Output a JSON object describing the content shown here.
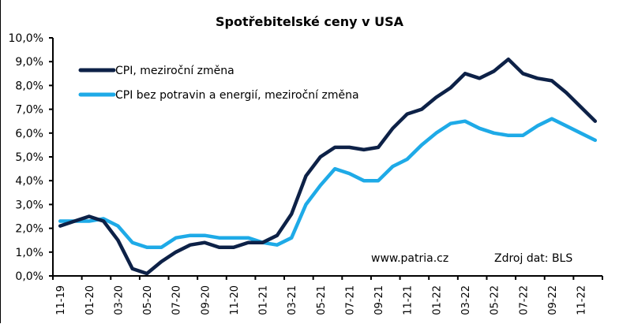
{
  "chart_data": {
    "type": "line",
    "title": "Spotřebitelské ceny v USA",
    "xlabel": "",
    "ylabel": "",
    "ylim": [
      0,
      10
    ],
    "y_ticks": [
      "0,0%",
      "1,0%",
      "2,0%",
      "3,0%",
      "4,0%",
      "5,0%",
      "6,0%",
      "7,0%",
      "8,0%",
      "9,0%",
      "10,0%"
    ],
    "x_tick_labels": [
      "11-19",
      "01-20",
      "03-20",
      "05-20",
      "07-20",
      "09-20",
      "11-20",
      "01-21",
      "03-21",
      "05-21",
      "07-21",
      "09-21",
      "11-21",
      "01-22",
      "03-22",
      "05-22",
      "07-22",
      "09-22",
      "11-22"
    ],
    "x": [
      "11-19",
      "12-19",
      "01-20",
      "02-20",
      "03-20",
      "04-20",
      "05-20",
      "06-20",
      "07-20",
      "08-20",
      "09-20",
      "10-20",
      "11-20",
      "12-20",
      "01-21",
      "02-21",
      "03-21",
      "04-21",
      "05-21",
      "06-21",
      "07-21",
      "08-21",
      "09-21",
      "10-21",
      "11-21",
      "12-21",
      "01-22",
      "02-22",
      "03-22",
      "04-22",
      "05-22",
      "06-22",
      "07-22",
      "08-22",
      "09-22",
      "10-22",
      "11-22",
      "12-22"
    ],
    "series": [
      {
        "name": "CPI, meziroční změna",
        "color": "#0d2147",
        "values": [
          2.1,
          2.3,
          2.5,
          2.3,
          1.5,
          0.3,
          0.1,
          0.6,
          1.0,
          1.3,
          1.4,
          1.2,
          1.2,
          1.4,
          1.4,
          1.7,
          2.6,
          4.2,
          5.0,
          5.4,
          5.4,
          5.3,
          5.4,
          6.2,
          6.8,
          7.0,
          7.5,
          7.9,
          8.5,
          8.3,
          8.6,
          9.1,
          8.5,
          8.3,
          8.2,
          7.7,
          7.1,
          6.5
        ]
      },
      {
        "name": "CPI bez potravin a energií, meziroční změna",
        "color": "#1eaae7",
        "values": [
          2.3,
          2.3,
          2.3,
          2.4,
          2.1,
          1.4,
          1.2,
          1.2,
          1.6,
          1.7,
          1.7,
          1.6,
          1.6,
          1.6,
          1.4,
          1.3,
          1.6,
          3.0,
          3.8,
          4.5,
          4.3,
          4.0,
          4.0,
          4.6,
          4.9,
          5.5,
          6.0,
          6.4,
          6.5,
          6.2,
          6.0,
          5.9,
          5.9,
          6.3,
          6.6,
          6.3,
          6.0,
          5.7
        ]
      }
    ],
    "grid": false,
    "legend_position": "top-left inside plot",
    "annotations": [
      "www.patria.cz",
      "Zdroj dat: BLS"
    ]
  },
  "labels": {
    "title": "Spotřebitelské ceny v USA",
    "legend_cpi": "CPI, meziroční změna",
    "legend_core": "CPI bez potravin a energií, meziroční změna",
    "watermark": "www.patria.cz",
    "source": "Zdroj dat: BLS"
  }
}
